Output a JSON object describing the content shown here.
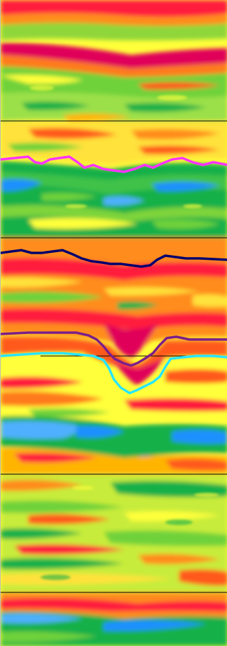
{
  "view": {
    "type": "seismic-amplitude-section",
    "colormap": [
      "#1e90ff",
      "#4fb0ff",
      "#18b04a",
      "#6fd23a",
      "#ffff3a",
      "#ffb400",
      "#ff5a1a",
      "#ff1a3c",
      "#e0005a"
    ],
    "background_color": "#ffff3a"
  },
  "horizons": [
    {
      "name": "horizon-magenta",
      "color": "#ff33ff"
    },
    {
      "name": "horizon-navy",
      "color": "#00006e"
    },
    {
      "name": "horizon-purple",
      "color": "#7a1f8a"
    },
    {
      "name": "horizon-cyan",
      "color": "#28e6ff"
    }
  ],
  "reference_lines": [
    {
      "name": "reference-line-1",
      "color": "#000000"
    },
    {
      "name": "reference-line-2",
      "color": "#000000"
    },
    {
      "name": "reference-line-3",
      "color": "#000000"
    },
    {
      "name": "reference-line-4",
      "color": "#000000"
    },
    {
      "name": "reference-line-5",
      "color": "#000000"
    }
  ]
}
